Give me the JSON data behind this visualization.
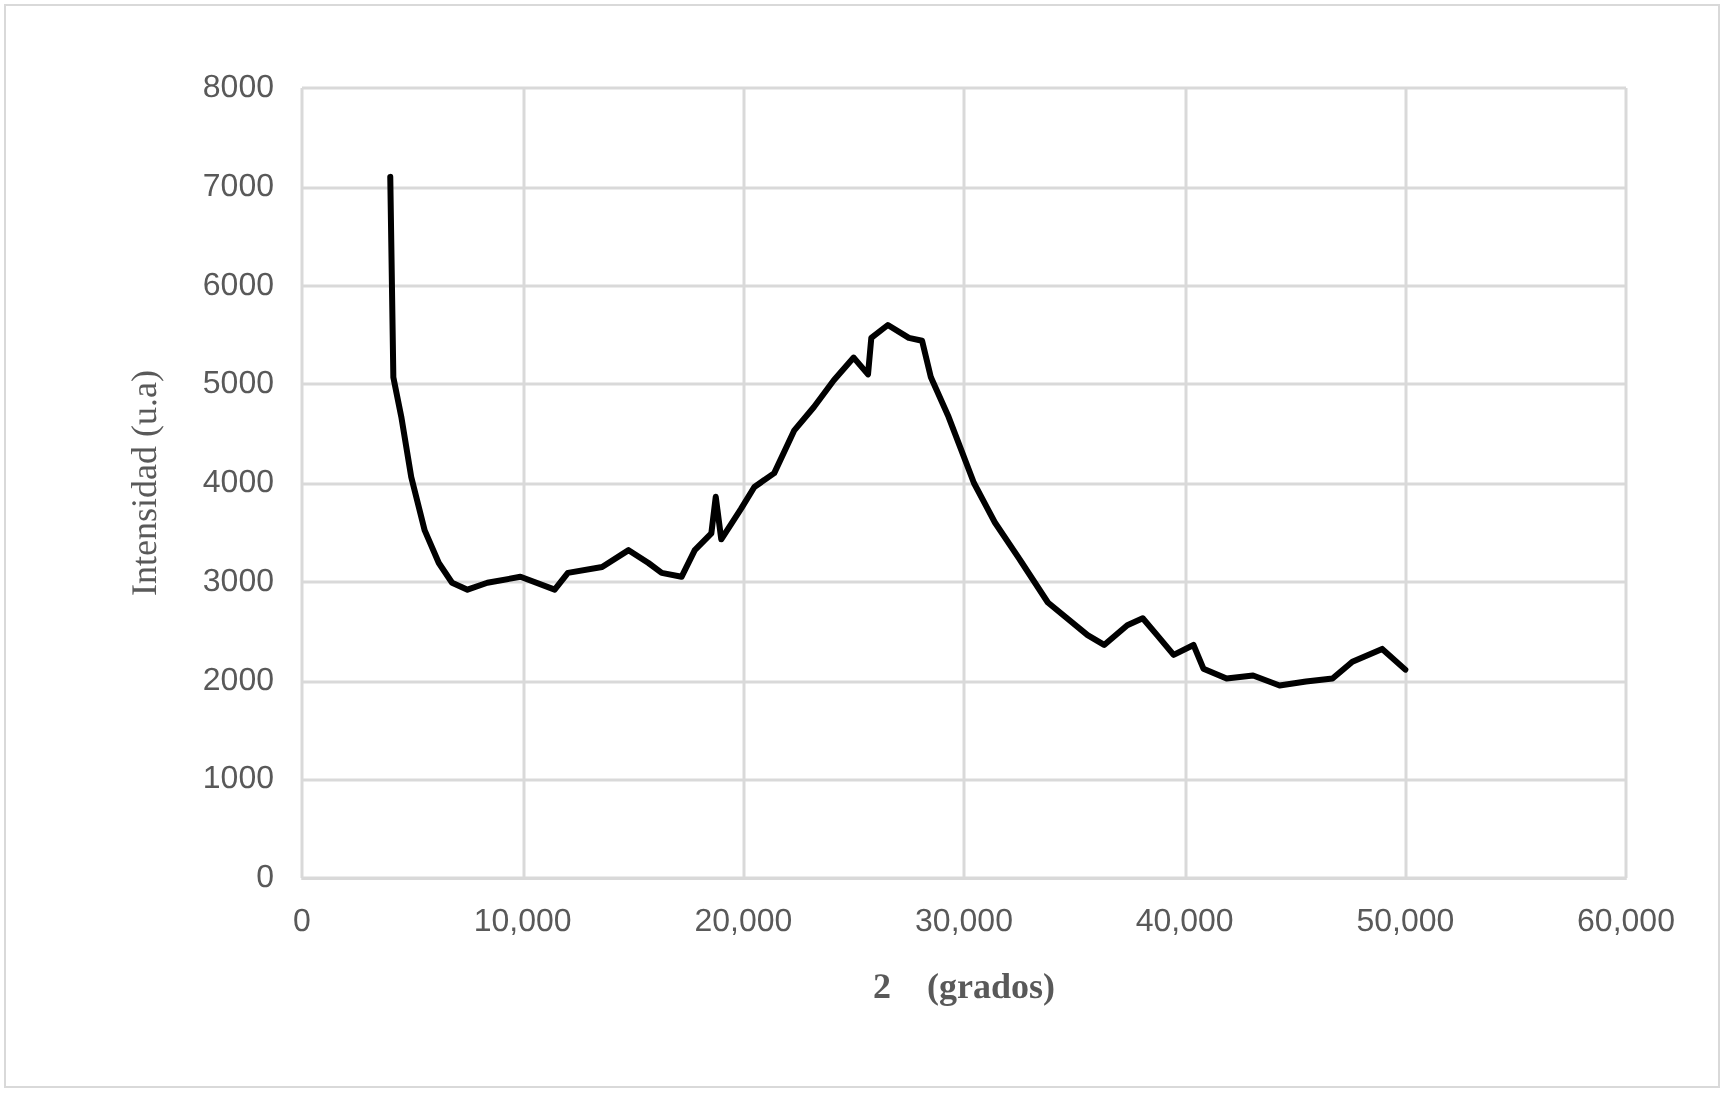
{
  "chart_data": {
    "type": "line",
    "xlabel": "2    (grados)",
    "ylabel": "Intensidad (u.a)",
    "xlim": [
      0,
      60000
    ],
    "xticks": [
      0,
      {
        "value": 10000,
        "label": "10,000"
      },
      {
        "value": 20000,
        "label": "20,000"
      },
      {
        "value": 30000,
        "label": "30,000"
      },
      {
        "value": 40000,
        "label": "40,000"
      },
      {
        "value": 50000,
        "label": "50,000"
      },
      {
        "value": 60000,
        "label": "60,000"
      }
    ],
    "ylim": [
      0,
      8000
    ],
    "yticks": [
      0,
      1000,
      2000,
      3000,
      4000,
      5000,
      6000,
      7000,
      8000
    ],
    "grid": true,
    "marker": "none",
    "line_style": "solid",
    "series": [
      {
        "color": "#000000",
        "x": [
          4000,
          4140,
          4500,
          4950,
          5560,
          6200,
          6800,
          7500,
          8400,
          9900,
          11450,
          12050,
          13600,
          14800,
          15700,
          16300,
          17200,
          17800,
          18550,
          18750,
          19000,
          19900,
          20500,
          21400,
          22300,
          23200,
          24100,
          25000,
          25650,
          25800,
          26550,
          27500,
          28100,
          28500,
          29300,
          30450,
          31400,
          32600,
          33800,
          35600,
          36350,
          37400,
          38100,
          38750,
          39500,
          40400,
          40850,
          41900,
          43100,
          44300,
          45500,
          46700,
          47600,
          48950,
          50000
        ],
        "values": [
          7100,
          5070,
          4670,
          4060,
          3520,
          3190,
          2990,
          2920,
          2990,
          3050,
          2920,
          3090,
          3150,
          3320,
          3190,
          3090,
          3050,
          3320,
          3490,
          3860,
          3430,
          3740,
          3960,
          4100,
          4530,
          4770,
          5040,
          5270,
          5100,
          5470,
          5600,
          5470,
          5440,
          5070,
          4670,
          4000,
          3600,
          3200,
          2790,
          2460,
          2360,
          2560,
          2630,
          2460,
          2260,
          2360,
          2120,
          2020,
          2050,
          1950,
          1990,
          2020,
          2190,
          2320,
          2110
        ]
      }
    ]
  }
}
